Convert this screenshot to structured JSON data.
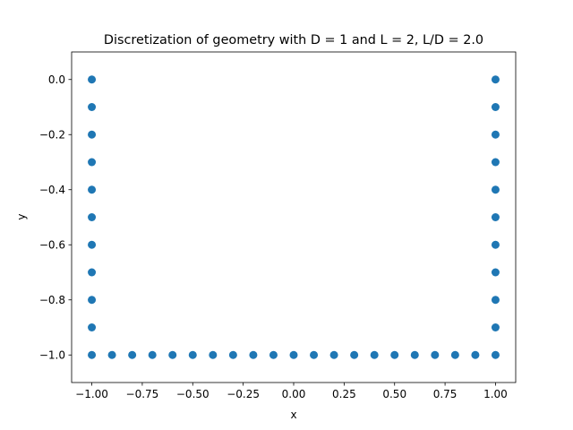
{
  "chart_data": {
    "type": "scatter",
    "title": "Discretization of geometry with D = 1 and L = 2, L/D = 2.0",
    "xlabel": "x",
    "ylabel": "y",
    "xlim": [
      -1.1,
      1.1
    ],
    "ylim": [
      -1.1,
      0.1
    ],
    "xticks": [
      "−1.00",
      "−0.75",
      "−0.50",
      "−0.25",
      "0.00",
      "0.25",
      "0.50",
      "0.75",
      "1.00"
    ],
    "xtick_values": [
      -1.0,
      -0.75,
      -0.5,
      -0.25,
      0.0,
      0.25,
      0.5,
      0.75,
      1.0
    ],
    "yticks": [
      "0.0",
      "−0.2",
      "−0.4",
      "−0.6",
      "−0.8",
      "−1.0"
    ],
    "ytick_values": [
      0.0,
      -0.2,
      -0.4,
      -0.6,
      -0.8,
      -1.0
    ],
    "grid": false,
    "marker_color": "#1f77b4",
    "series": [
      {
        "points": [
          {
            "x": -1.0,
            "y": 0.0
          },
          {
            "x": -1.0,
            "y": -0.1
          },
          {
            "x": -1.0,
            "y": -0.2
          },
          {
            "x": -1.0,
            "y": -0.3
          },
          {
            "x": -1.0,
            "y": -0.4
          },
          {
            "x": -1.0,
            "y": -0.5
          },
          {
            "x": -1.0,
            "y": -0.6
          },
          {
            "x": -1.0,
            "y": -0.7
          },
          {
            "x": -1.0,
            "y": -0.8
          },
          {
            "x": -1.0,
            "y": -0.9
          },
          {
            "x": -1.0,
            "y": -1.0
          },
          {
            "x": -0.9,
            "y": -1.0
          },
          {
            "x": -0.8,
            "y": -1.0
          },
          {
            "x": -0.7,
            "y": -1.0
          },
          {
            "x": -0.6,
            "y": -1.0
          },
          {
            "x": -0.5,
            "y": -1.0
          },
          {
            "x": -0.4,
            "y": -1.0
          },
          {
            "x": -0.3,
            "y": -1.0
          },
          {
            "x": -0.2,
            "y": -1.0
          },
          {
            "x": -0.1,
            "y": -1.0
          },
          {
            "x": 0.0,
            "y": -1.0
          },
          {
            "x": 0.1,
            "y": -1.0
          },
          {
            "x": 0.2,
            "y": -1.0
          },
          {
            "x": 0.3,
            "y": -1.0
          },
          {
            "x": 0.4,
            "y": -1.0
          },
          {
            "x": 0.5,
            "y": -1.0
          },
          {
            "x": 0.6,
            "y": -1.0
          },
          {
            "x": 0.7,
            "y": -1.0
          },
          {
            "x": 0.8,
            "y": -1.0
          },
          {
            "x": 0.9,
            "y": -1.0
          },
          {
            "x": 1.0,
            "y": -1.0
          },
          {
            "x": 1.0,
            "y": -0.9
          },
          {
            "x": 1.0,
            "y": -0.8
          },
          {
            "x": 1.0,
            "y": -0.7
          },
          {
            "x": 1.0,
            "y": -0.6
          },
          {
            "x": 1.0,
            "y": -0.5
          },
          {
            "x": 1.0,
            "y": -0.4
          },
          {
            "x": 1.0,
            "y": -0.3
          },
          {
            "x": 1.0,
            "y": -0.2
          },
          {
            "x": 1.0,
            "y": -0.1
          },
          {
            "x": 1.0,
            "y": 0.0
          }
        ]
      }
    ]
  }
}
